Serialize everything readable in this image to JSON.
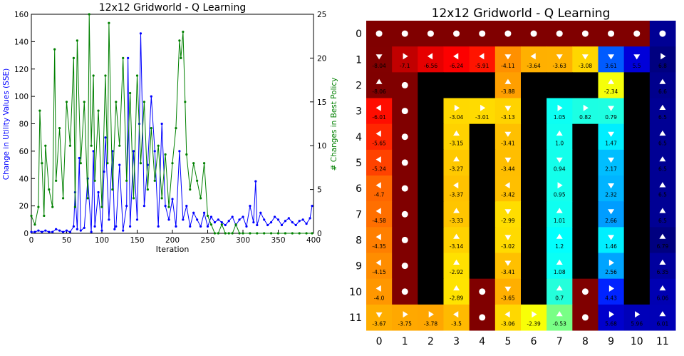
{
  "chart_data": [
    {
      "type": "line",
      "title": "12x12 Gridworld - Q Learning",
      "xlabel": "Iteration",
      "ylabel": "Change in Utility Values (SSE)",
      "y2label": "# Changes in Best Policy",
      "xlim": [
        0,
        400
      ],
      "ylim": [
        0,
        160
      ],
      "y2lim": [
        0,
        25
      ],
      "xticks": [
        "0",
        "50",
        "100",
        "150",
        "200",
        "250",
        "300",
        "350",
        "400"
      ],
      "yticks": [
        "0",
        "20",
        "40",
        "60",
        "80",
        "100",
        "120",
        "140",
        "160"
      ],
      "y2ticks": [
        "0",
        "5",
        "10",
        "15",
        "20",
        "25"
      ],
      "grid": false,
      "series": [
        {
          "axis": "left",
          "color": "#0000ff",
          "marker": "dot",
          "x": [
            0,
            5,
            10,
            15,
            20,
            25,
            30,
            35,
            40,
            45,
            50,
            55,
            60,
            62,
            65,
            68,
            70,
            75,
            80,
            85,
            88,
            90,
            95,
            100,
            103,
            105,
            110,
            115,
            118,
            120,
            125,
            130,
            135,
            137,
            140,
            145,
            150,
            153,
            155,
            160,
            165,
            170,
            175,
            180,
            185,
            190,
            195,
            200,
            205,
            210,
            215,
            220,
            225,
            230,
            235,
            240,
            245,
            250,
            255,
            260,
            265,
            270,
            275,
            280,
            285,
            290,
            295,
            300,
            305,
            310,
            315,
            318,
            320,
            325,
            330,
            335,
            340,
            345,
            350,
            355,
            360,
            365,
            370,
            375,
            380,
            385,
            390,
            395,
            398
          ],
          "y": [
            1,
            1,
            2,
            1,
            2,
            1,
            1,
            3,
            2,
            1,
            2,
            1,
            5,
            30,
            3,
            55,
            2,
            4,
            40,
            1,
            60,
            5,
            30,
            2,
            45,
            70,
            10,
            60,
            3,
            5,
            50,
            2,
            20,
            128,
            5,
            60,
            10,
            80,
            146,
            20,
            50,
            100,
            60,
            5,
            80,
            20,
            10,
            25,
            5,
            60,
            10,
            20,
            5,
            15,
            10,
            5,
            15,
            5,
            12,
            8,
            10,
            8,
            6,
            9,
            12,
            6,
            10,
            12,
            5,
            20,
            8,
            38,
            6,
            15,
            10,
            6,
            8,
            12,
            10,
            6,
            9,
            11,
            8,
            6,
            9,
            10,
            7,
            11,
            20
          ]
        },
        {
          "axis": "right",
          "color": "#008000",
          "marker": "dot",
          "x": [
            0,
            5,
            10,
            12,
            15,
            18,
            20,
            25,
            30,
            33,
            35,
            40,
            45,
            50,
            55,
            60,
            62,
            65,
            70,
            75,
            80,
            82,
            85,
            88,
            90,
            95,
            100,
            105,
            108,
            110,
            115,
            120,
            125,
            130,
            135,
            140,
            145,
            150,
            155,
            160,
            165,
            170,
            175,
            180,
            185,
            190,
            195,
            200,
            205,
            210,
            212,
            215,
            218,
            220,
            225,
            230,
            235,
            240,
            245,
            250,
            255,
            260,
            265,
            270,
            275,
            280,
            285,
            290,
            295,
            300,
            310,
            320,
            330,
            340,
            350,
            360,
            370,
            380,
            390,
            398
          ],
          "y": [
            2,
            1,
            3,
            14,
            8,
            2,
            10,
            5,
            3,
            21,
            6,
            12,
            4,
            15,
            10,
            20,
            3,
            22,
            8,
            15,
            4,
            25,
            10,
            18,
            6,
            14,
            3,
            18,
            8,
            24,
            5,
            15,
            10,
            20,
            6,
            16,
            4,
            18,
            8,
            15,
            5,
            12,
            6,
            10,
            4,
            9,
            3,
            8,
            12,
            22,
            20,
            23,
            15,
            9,
            5,
            8,
            6,
            4,
            8,
            2,
            1,
            0,
            0,
            1,
            0,
            0,
            0,
            1,
            0,
            0,
            0,
            0,
            0,
            0,
            0,
            0,
            0,
            0,
            0,
            0
          ]
        }
      ]
    },
    {
      "type": "heatmap",
      "title": "12x12 Gridworld - Q Learning",
      "rows": 12,
      "cols": 12,
      "x_ticks": [
        "0",
        "1",
        "2",
        "3",
        "4",
        "5",
        "6",
        "7",
        "8",
        "9",
        "10",
        "11"
      ],
      "y_ticks": [
        "0",
        "1",
        "2",
        "3",
        "4",
        "5",
        "6",
        "7",
        "8",
        "9",
        "10",
        "11"
      ],
      "wall_color": "#000000",
      "terminal_color": "#800000",
      "grid": [
        [
          "T",
          "T",
          "T",
          "T",
          "T",
          "T",
          "T",
          "T",
          "T",
          "T",
          "T",
          6.5
        ],
        [
          -8.04,
          -7.1,
          -6.56,
          -6.24,
          -5.91,
          -4.11,
          -3.64,
          -3.63,
          -3.08,
          3.61,
          5.5,
          6.8
        ],
        [
          -8.06,
          "T",
          "W",
          "W",
          "W",
          -3.88,
          "W",
          "W",
          "W",
          -2.34,
          "W",
          6.6
        ],
        [
          -6.01,
          "T",
          "W",
          -3.04,
          -3.01,
          -3.13,
          "W",
          1.05,
          0.82,
          0.79,
          "W",
          6.5
        ],
        [
          -5.65,
          "T",
          "W",
          -3.15,
          "W",
          -3.41,
          "W",
          1.0,
          "W",
          1.47,
          "W",
          6.5
        ],
        [
          -5.24,
          "T",
          "W",
          -3.27,
          "W",
          -3.44,
          "W",
          0.94,
          "W",
          2.17,
          "W",
          6.5
        ],
        [
          -4.7,
          "T",
          "W",
          -3.37,
          "W",
          -3.42,
          "W",
          0.95,
          "W",
          2.32,
          "W",
          6.5
        ],
        [
          -4.58,
          "T",
          "W",
          -3.33,
          "W",
          -2.99,
          "W",
          1.01,
          "W",
          2.66,
          "W",
          6.5
        ],
        [
          -4.35,
          "T",
          "W",
          -3.14,
          "W",
          -3.02,
          "W",
          1.2,
          "W",
          1.46,
          "W",
          6.79
        ],
        [
          -4.15,
          "T",
          "W",
          -2.92,
          "W",
          -3.41,
          "W",
          1.08,
          "W",
          2.56,
          "W",
          6.35
        ],
        [
          -4.0,
          "T",
          "W",
          -2.89,
          "T",
          -3.65,
          "W",
          0.7,
          "T",
          4.43,
          "W",
          6.06
        ],
        [
          -3.67,
          -3.75,
          -3.78,
          -3.5,
          "T",
          -3.06,
          -2.39,
          -0.53,
          "T",
          5.68,
          5.96,
          6.01
        ]
      ],
      "labels": [
        [
          "",
          "",
          "",
          "",
          "",
          "",
          "",
          "",
          "",
          "",
          "",
          ""
        ],
        [
          "-8.04",
          "-7.1",
          "-6.56",
          "-6.24",
          "-5.91",
          "-4.11",
          "-3.64",
          "-3.63",
          "-3.08",
          "3.61",
          "5.5",
          "6.8"
        ],
        [
          "-8.06",
          "",
          "",
          "",
          "",
          "-3.88",
          "",
          "",
          "",
          "-2.34",
          "",
          "6.6"
        ],
        [
          "-6.01",
          "",
          "",
          "-3.04",
          "-3.01",
          "-3.13",
          "",
          "1.05",
          "0.82",
          "0.79",
          "",
          "6.5"
        ],
        [
          "-5.65",
          "",
          "",
          "-3.15",
          "",
          "-3.41",
          "",
          "1.0",
          "",
          "1.47",
          "",
          "6.5"
        ],
        [
          "-5.24",
          "",
          "",
          "-3.27",
          "",
          "-3.44",
          "",
          "0.94",
          "",
          "2.17",
          "",
          "6.5"
        ],
        [
          "-4.7",
          "",
          "",
          "-3.37",
          "",
          "-3.42",
          "",
          "0.95",
          "",
          "2.32",
          "",
          "6.5"
        ],
        [
          "-4.58",
          "",
          "",
          "-3.33",
          "",
          "-2.99",
          "",
          "1.01",
          "",
          "2.66",
          "",
          "6.5"
        ],
        [
          "-4.35",
          "",
          "",
          "-3.14",
          "",
          "-3.02",
          "",
          "1.2",
          "",
          "1.46",
          "",
          "6.79"
        ],
        [
          "-4.15",
          "",
          "",
          "-2.92",
          "",
          "-3.41",
          "",
          "1.08",
          "",
          "2.56",
          "",
          "6.35"
        ],
        [
          "-4.0",
          "",
          "",
          "-2.89",
          "",
          "-3.65",
          "",
          "0.7",
          "",
          "4.43",
          "",
          "6.06"
        ],
        [
          "-3.67",
          "-3.75",
          "-3.78",
          "-3.5",
          "",
          "-3.06",
          "-2.39",
          "-0.53",
          "",
          "5.68",
          "5.96",
          "6.01"
        ]
      ],
      "arrows": [
        [
          "dot",
          "dot",
          "dot",
          "dot",
          "dot",
          "dot",
          "dot",
          "dot",
          "dot",
          "dot",
          "dot",
          "dot"
        ],
        [
          "down",
          "right",
          "left",
          "left",
          "left",
          "down",
          "left",
          "down",
          "down",
          "down",
          "down",
          "right"
        ],
        [
          "up",
          "dot",
          "",
          "",
          "",
          "up",
          "",
          "",
          "",
          "up",
          "",
          "up"
        ],
        [
          "left",
          "dot",
          "",
          "right",
          "right",
          "down",
          "",
          "right",
          "right",
          "down",
          "",
          "up"
        ],
        [
          "left",
          "dot",
          "",
          "up",
          "",
          "down",
          "",
          "up",
          "",
          "down",
          "",
          "up"
        ],
        [
          "left",
          "dot",
          "",
          "up",
          "",
          "down",
          "",
          "down",
          "",
          "down",
          "",
          "up"
        ],
        [
          "left",
          "dot",
          "",
          "left",
          "",
          "left",
          "",
          "right",
          "",
          "down",
          "",
          "up"
        ],
        [
          "left",
          "dot",
          "",
          "up",
          "",
          "down",
          "",
          "up",
          "",
          "down",
          "",
          "up"
        ],
        [
          "left",
          "dot",
          "",
          "up",
          "",
          "down",
          "",
          "up",
          "",
          "down",
          "",
          "up"
        ],
        [
          "left",
          "dot",
          "",
          "up",
          "",
          "down",
          "",
          "up",
          "",
          "right",
          "",
          "up"
        ],
        [
          "left",
          "dot",
          "",
          "up",
          "dot",
          "down",
          "",
          "up",
          "dot",
          "right",
          "",
          "up"
        ],
        [
          "down",
          "right",
          "right",
          "left",
          "dot",
          "left",
          "right",
          "up",
          "dot",
          "right",
          "right",
          "up"
        ]
      ]
    }
  ]
}
